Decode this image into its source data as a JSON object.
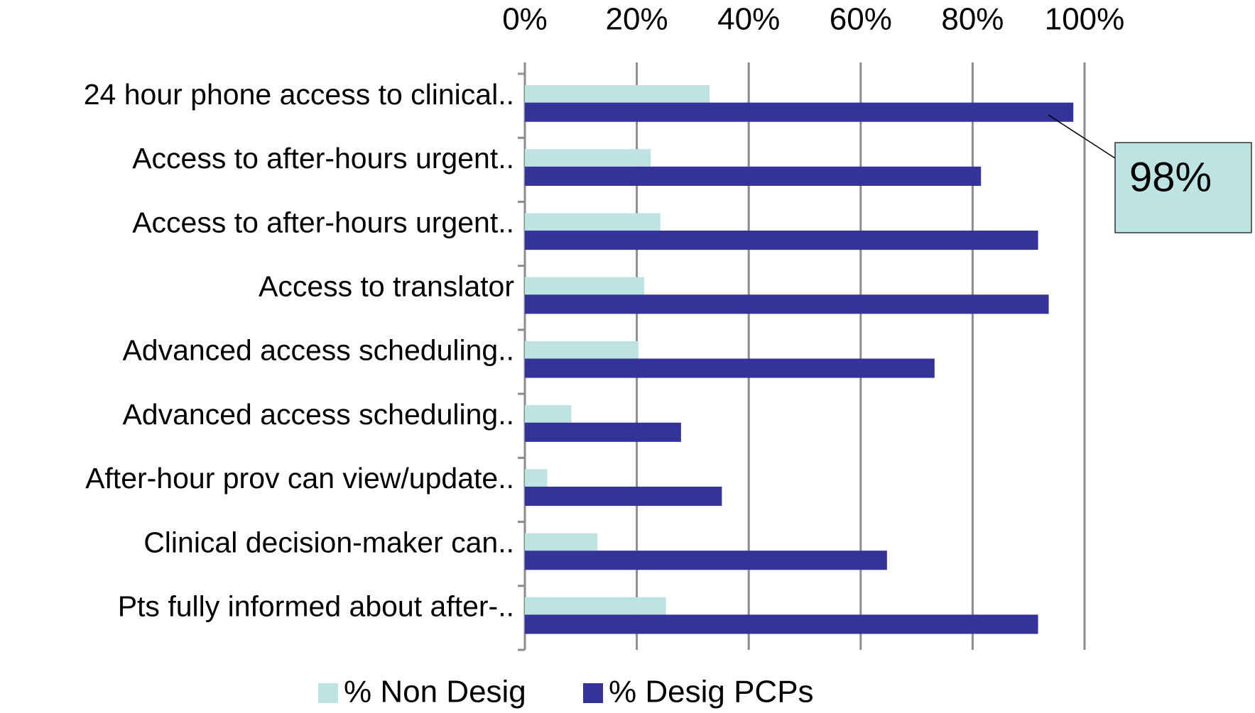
{
  "chart_data": {
    "type": "barh",
    "categories": [
      "24 hour phone access to clinical..",
      "Access to after-hours urgent..",
      "Access to after-hours urgent..",
      "Access to translator",
      "Advanced access scheduling..",
      "Advanced access scheduling..",
      "After-hour prov can view/update..",
      "Clinical decision-maker can..",
      "Pts fully informed about after-.."
    ],
    "series": [
      {
        "name": "% Non Desig",
        "color": "#bde3e3",
        "values": [
          33,
          22.5,
          24.2,
          21.3,
          20.3,
          8.3,
          4,
          13,
          25.2
        ]
      },
      {
        "name": "% Desig PCPs",
        "color": "#333399",
        "values": [
          98,
          81.5,
          91.7,
          93.6,
          73.2,
          27.9,
          35.2,
          64.7,
          91.7
        ],
        "value_labels": [
          "98%",
          null,
          null,
          null,
          null,
          null,
          null,
          null,
          null
        ]
      }
    ],
    "xlim": [
      0,
      100
    ],
    "xticks": [
      {
        "value": 0,
        "label": "0%"
      },
      {
        "value": 20,
        "label": "20%"
      },
      {
        "value": 40,
        "label": "40%"
      },
      {
        "value": 60,
        "label": "60%"
      },
      {
        "value": 80,
        "label": "80%"
      },
      {
        "value": 100,
        "label": "100%"
      }
    ],
    "grid": true,
    "legend": "bottom"
  }
}
